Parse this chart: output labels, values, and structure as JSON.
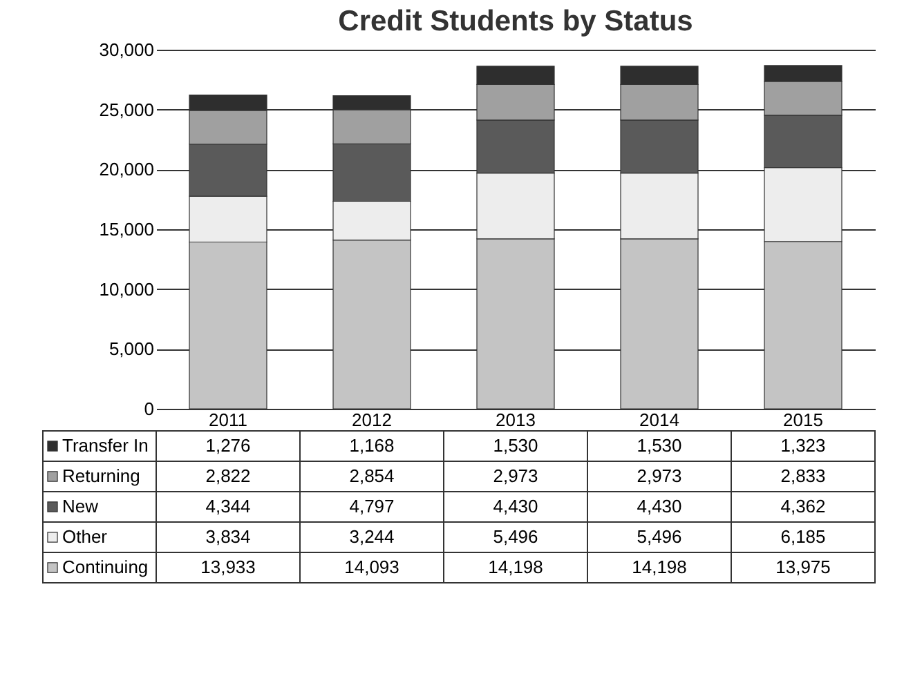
{
  "chart_data": {
    "type": "bar",
    "title": "Credit Students by Status",
    "stacked": true,
    "categories": [
      "2011",
      "2012",
      "2013",
      "2014",
      "2015"
    ],
    "series": [
      {
        "name": "Continuing",
        "color": "#c4c4c4",
        "values": [
          13933,
          14093,
          14198,
          14198,
          13975
        ],
        "value_labels": [
          "13,933",
          "14,093",
          "14,198",
          "14,198",
          "13,975"
        ]
      },
      {
        "name": "Other",
        "color": "#ededed",
        "values": [
          3834,
          3244,
          5496,
          5496,
          6185
        ],
        "value_labels": [
          "3,834",
          "3,244",
          "5,496",
          "5,496",
          "6,185"
        ]
      },
      {
        "name": "New",
        "color": "#5a5a5a",
        "values": [
          4344,
          4797,
          4430,
          4430,
          4362
        ],
        "value_labels": [
          "4,344",
          "4,797",
          "4,430",
          "4,430",
          "4,362"
        ]
      },
      {
        "name": "Returning",
        "color": "#a0a0a0",
        "values": [
          2822,
          2854,
          2973,
          2973,
          2833
        ],
        "value_labels": [
          "2,822",
          "2,854",
          "2,973",
          "2,973",
          "2,833"
        ]
      },
      {
        "name": "Transfer In",
        "color": "#2e2e2e",
        "values": [
          1276,
          1168,
          1530,
          1530,
          1323
        ],
        "value_labels": [
          "1,276",
          "1,168",
          "1,530",
          "1,530",
          "1,323"
        ]
      }
    ],
    "ylim": [
      0,
      30000
    ],
    "yticks": [
      {
        "value": 0,
        "label": "0"
      },
      {
        "value": 5000,
        "label": "5,000"
      },
      {
        "value": 10000,
        "label": "10,000"
      },
      {
        "value": 15000,
        "label": "15,000"
      },
      {
        "value": 20000,
        "label": "20,000"
      },
      {
        "value": 25000,
        "label": "25,000"
      },
      {
        "value": 30000,
        "label": "30,000"
      }
    ],
    "grid": "y",
    "legend": "bottom"
  }
}
